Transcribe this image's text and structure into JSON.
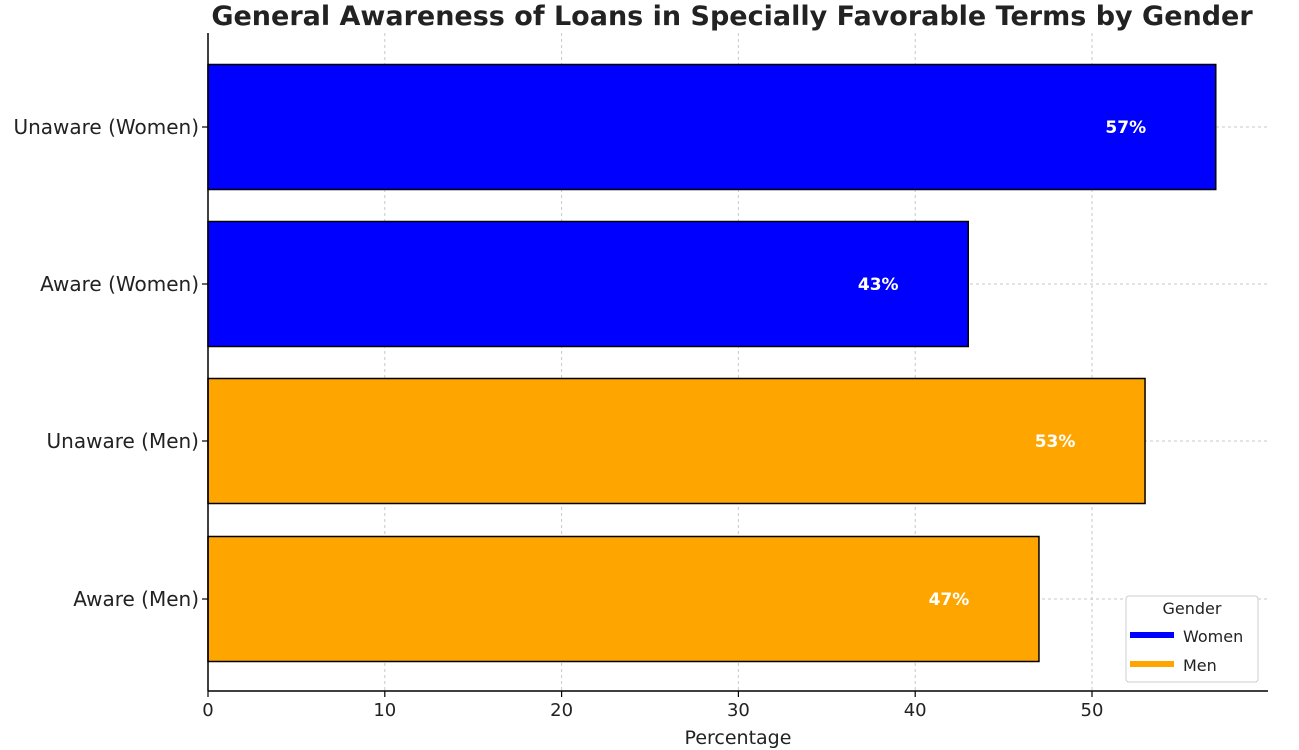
{
  "chart_data": {
    "type": "bar",
    "orientation": "horizontal",
    "title": "General Awareness of Loans in Specially Favorable Terms by Gender",
    "xlabel": "Percentage",
    "ylabel": "",
    "xlim": [
      0,
      60
    ],
    "xticks": [
      0,
      10,
      20,
      30,
      40,
      50
    ],
    "grid": true,
    "categories": [
      "Unaware (Women)",
      "Aware (Women)",
      "Unaware (Men)",
      "Aware (Men)"
    ],
    "values": [
      57,
      43,
      53,
      47
    ],
    "data_labels": [
      "57%",
      "43%",
      "53%",
      "47%"
    ],
    "bar_groups": [
      "Women",
      "Women",
      "Men",
      "Men"
    ],
    "legend": {
      "title": "Gender",
      "placement": "lower-right",
      "entries": [
        {
          "label": "Women",
          "color": "#0000FF"
        },
        {
          "label": "Men",
          "color": "#FFA500"
        }
      ]
    },
    "colors": {
      "Women": "#0000FF",
      "Men": "#FFA500"
    }
  }
}
